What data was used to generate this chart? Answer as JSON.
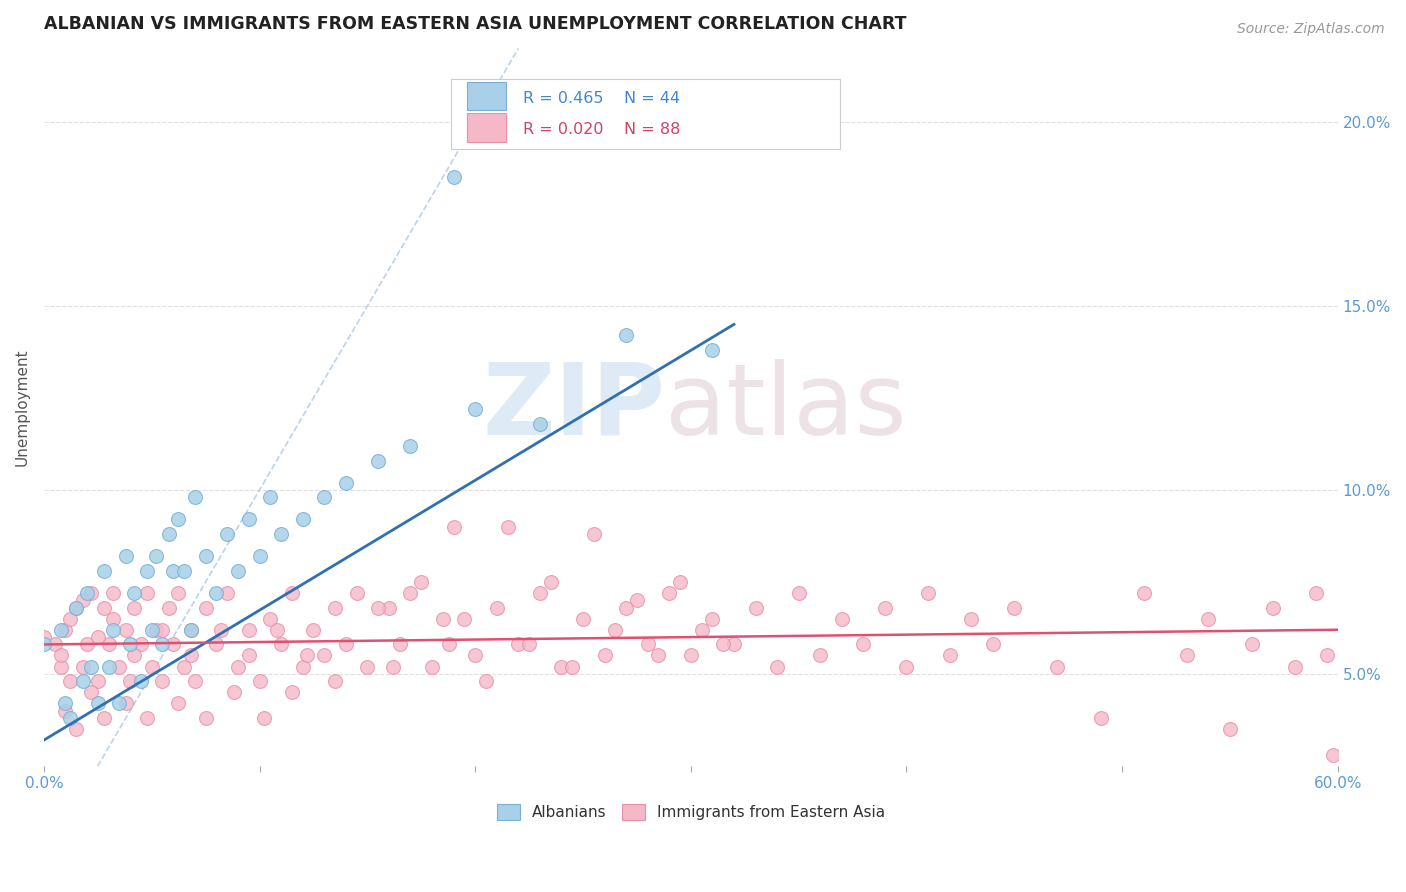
{
  "title": "ALBANIAN VS IMMIGRANTS FROM EASTERN ASIA UNEMPLOYMENT CORRELATION CHART",
  "source": "Source: ZipAtlas.com",
  "ylabel": "Unemployment",
  "xlim": [
    0.0,
    0.6
  ],
  "ylim": [
    0.025,
    0.22
  ],
  "xticks": [
    0.0,
    0.1,
    0.2,
    0.3,
    0.4,
    0.5,
    0.6
  ],
  "xtick_labels": [
    "0.0%",
    "",
    "",
    "",
    "",
    "",
    "60.0%"
  ],
  "yticks_right": [
    0.05,
    0.1,
    0.15,
    0.2
  ],
  "ytick_labels_right": [
    "5.0%",
    "10.0%",
    "15.0%",
    "20.0%"
  ],
  "blue_color": "#a8d0e8",
  "pink_color": "#f4b8c8",
  "blue_edge_color": "#7ab0d4",
  "pink_edge_color": "#e890a8",
  "blue_line_color": "#3070b0",
  "pink_line_color": "#e05070",
  "ref_line_color": "#a0c0e0",
  "grid_color": "#e0e0e0",
  "blue_scatter_x": [
    0.0,
    0.008,
    0.01,
    0.012,
    0.015,
    0.018,
    0.02,
    0.022,
    0.025,
    0.028,
    0.03,
    0.032,
    0.035,
    0.038,
    0.04,
    0.042,
    0.045,
    0.048,
    0.05,
    0.052,
    0.055,
    0.058,
    0.06,
    0.062,
    0.065,
    0.068,
    0.07,
    0.075,
    0.08,
    0.085,
    0.09,
    0.095,
    0.1,
    0.105,
    0.11,
    0.12,
    0.13,
    0.14,
    0.155,
    0.17,
    0.2,
    0.23,
    0.27,
    0.31
  ],
  "blue_scatter_y": [
    0.058,
    0.062,
    0.042,
    0.038,
    0.068,
    0.048,
    0.072,
    0.052,
    0.042,
    0.078,
    0.052,
    0.062,
    0.042,
    0.082,
    0.058,
    0.072,
    0.048,
    0.078,
    0.062,
    0.082,
    0.058,
    0.088,
    0.078,
    0.092,
    0.078,
    0.062,
    0.098,
    0.082,
    0.072,
    0.088,
    0.078,
    0.092,
    0.082,
    0.098,
    0.088,
    0.092,
    0.098,
    0.102,
    0.108,
    0.112,
    0.122,
    0.118,
    0.142,
    0.138
  ],
  "blue_outlier_x": [
    0.19
  ],
  "blue_outlier_y": [
    0.185
  ],
  "blue_line_x": [
    0.0,
    0.32
  ],
  "blue_line_y": [
    0.032,
    0.145
  ],
  "pink_line_x": [
    0.0,
    0.6
  ],
  "pink_line_y": [
    0.058,
    0.062
  ],
  "ref_line_x": [
    0.0,
    0.22
  ],
  "ref_line_y": [
    0.0,
    0.22
  ],
  "pink_scatter_x": [
    0.0,
    0.005,
    0.008,
    0.01,
    0.012,
    0.015,
    0.018,
    0.02,
    0.022,
    0.025,
    0.028,
    0.03,
    0.032,
    0.035,
    0.038,
    0.04,
    0.042,
    0.045,
    0.048,
    0.05,
    0.052,
    0.055,
    0.058,
    0.06,
    0.062,
    0.065,
    0.068,
    0.07,
    0.075,
    0.08,
    0.085,
    0.09,
    0.095,
    0.1,
    0.105,
    0.11,
    0.115,
    0.12,
    0.125,
    0.13,
    0.135,
    0.14,
    0.145,
    0.15,
    0.16,
    0.165,
    0.17,
    0.18,
    0.185,
    0.19,
    0.2,
    0.21,
    0.22,
    0.23,
    0.24,
    0.25,
    0.26,
    0.27,
    0.28,
    0.29,
    0.3,
    0.31,
    0.32,
    0.33,
    0.34,
    0.35,
    0.36,
    0.37,
    0.38,
    0.39,
    0.4,
    0.41,
    0.42,
    0.43,
    0.44,
    0.45,
    0.47,
    0.49,
    0.51,
    0.53,
    0.54,
    0.55,
    0.56,
    0.57,
    0.58,
    0.59,
    0.595,
    0.598
  ],
  "pink_scatter_y": [
    0.06,
    0.058,
    0.052,
    0.062,
    0.048,
    0.068,
    0.052,
    0.058,
    0.072,
    0.048,
    0.068,
    0.058,
    0.072,
    0.052,
    0.062,
    0.048,
    0.068,
    0.058,
    0.072,
    0.052,
    0.062,
    0.048,
    0.068,
    0.058,
    0.072,
    0.052,
    0.062,
    0.048,
    0.068,
    0.058,
    0.072,
    0.052,
    0.062,
    0.048,
    0.065,
    0.058,
    0.072,
    0.052,
    0.062,
    0.055,
    0.068,
    0.058,
    0.072,
    0.052,
    0.068,
    0.058,
    0.072,
    0.052,
    0.065,
    0.09,
    0.055,
    0.068,
    0.058,
    0.072,
    0.052,
    0.065,
    0.055,
    0.068,
    0.058,
    0.072,
    0.055,
    0.065,
    0.058,
    0.068,
    0.052,
    0.072,
    0.055,
    0.065,
    0.058,
    0.068,
    0.052,
    0.072,
    0.055,
    0.065,
    0.058,
    0.068,
    0.052,
    0.038,
    0.072,
    0.055,
    0.065,
    0.035,
    0.058,
    0.068,
    0.052,
    0.072,
    0.055,
    0.028
  ]
}
